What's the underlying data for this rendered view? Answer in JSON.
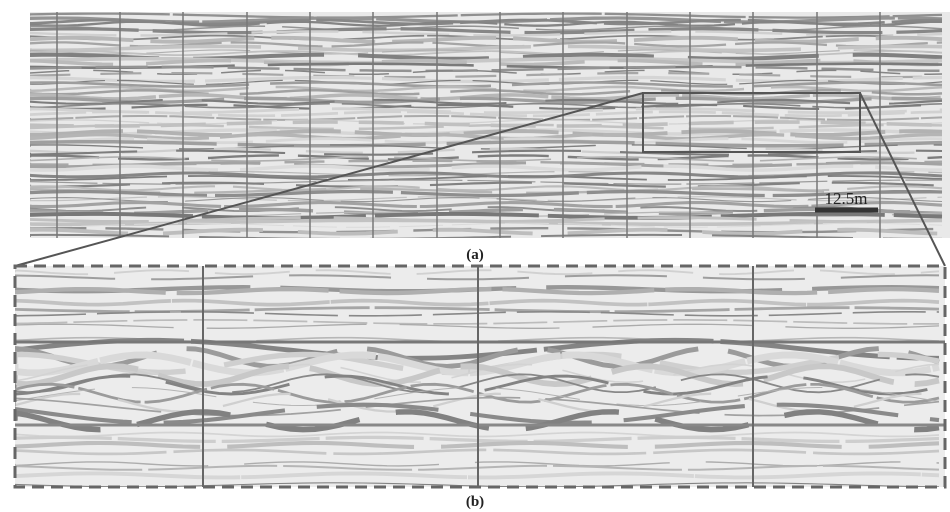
{
  "panel_a": {
    "label": "(a)",
    "scale_label": "12.5m"
  },
  "panel_b": {
    "label": "(b)"
  }
}
